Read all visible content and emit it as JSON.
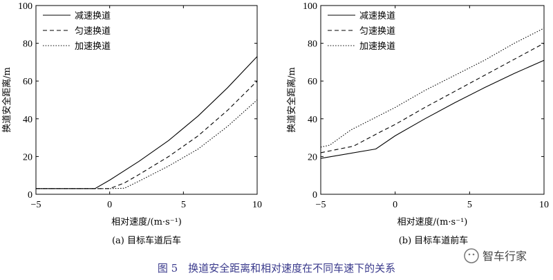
{
  "figure": {
    "caption": "图 5　换道安全距离和相对速度在不同车速下的关系",
    "watermark": "智车行家"
  },
  "chart_data": [
    {
      "type": "line",
      "subcaption": "(a) 目标车道后车",
      "xlabel": "相对速度/(m·s⁻¹)",
      "ylabel": "换道安全距离/m",
      "xlim": [
        -5,
        10
      ],
      "ylim": [
        0,
        100
      ],
      "xticks": [
        -5,
        0,
        5,
        10
      ],
      "yticks": [
        0,
        20,
        40,
        60,
        80,
        100
      ],
      "legend_position": "top-left",
      "series": [
        {
          "name": "减速换道",
          "style": "solid",
          "x": [
            -5,
            -1,
            0,
            2,
            4,
            6,
            8,
            10
          ],
          "y": [
            3,
            3,
            7.5,
            17.5,
            28.5,
            41.5,
            56.5,
            73
          ]
        },
        {
          "name": "匀速换道",
          "style": "dashed",
          "x": [
            -5,
            0,
            1,
            2,
            4,
            6,
            8,
            10
          ],
          "y": [
            3,
            3,
            6,
            10.5,
            20,
            31,
            44.5,
            60
          ]
        },
        {
          "name": "加速换道",
          "style": "dotted",
          "x": [
            -5,
            0,
            1,
            2,
            4,
            6,
            8,
            10
          ],
          "y": [
            3,
            3,
            3.2,
            7,
            15,
            24,
            36,
            50
          ]
        }
      ]
    },
    {
      "type": "line",
      "subcaption": "(b) 目标车道前车",
      "xlabel": "相对速度/(m·s⁻¹)",
      "ylabel": "换道安全距离/m",
      "xlim": [
        -5,
        10
      ],
      "ylim": [
        0,
        100
      ],
      "xticks": [
        -5,
        0,
        5,
        10
      ],
      "yticks": [
        0,
        20,
        40,
        60,
        80,
        100
      ],
      "legend_position": "top-left",
      "series": [
        {
          "name": "减速换道",
          "style": "solid",
          "x": [
            -5,
            -1.3,
            0,
            2,
            4,
            6,
            8,
            10
          ],
          "y": [
            19,
            24,
            31,
            40,
            48.5,
            56.5,
            64,
            71
          ]
        },
        {
          "name": "匀速换道",
          "style": "dashed",
          "x": [
            -5,
            -2.8,
            -1,
            0,
            2,
            4,
            6,
            8,
            10
          ],
          "y": [
            22,
            25.5,
            33,
            37,
            46,
            54.5,
            63,
            71.5,
            80
          ]
        },
        {
          "name": "加速换道",
          "style": "dotted",
          "x": [
            -5,
            -4.4,
            -3,
            0,
            2,
            4,
            6,
            8,
            10
          ],
          "y": [
            25,
            26,
            34,
            46,
            55,
            63,
            71,
            80,
            88
          ]
        }
      ]
    }
  ]
}
